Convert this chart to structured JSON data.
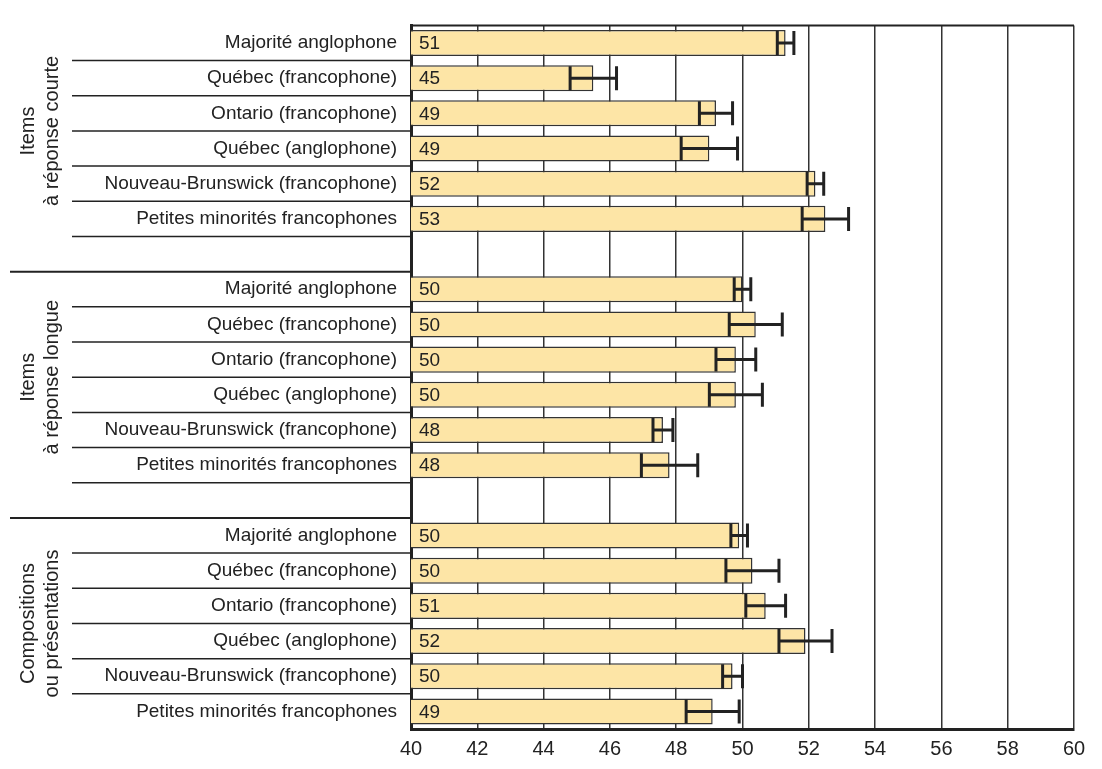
{
  "chart_data": {
    "type": "bar",
    "orientation": "horizontal",
    "categories": [
      "Majorité anglophone",
      "Québec (francophone)",
      "Ontario (francophone)",
      "Québec (anglophone)",
      "Nouveau-Brunswick (francophone)",
      "Petites minorités francophones",
      null,
      "Majorité anglophone",
      "Québec (francophone)",
      "Ontario (francophone)",
      "Québec (anglophone)",
      "Nouveau-Brunswick (francophone)",
      "Petites minorités francophones",
      null,
      "Majorité anglophone",
      "Québec (francophone)",
      "Ontario (francophone)",
      "Québec (anglophone)",
      "Nouveau-Brunswick (francophone)",
      "Petites minorités francophones"
    ],
    "values": [
      51.3,
      45.5,
      49.2,
      49.0,
      52.2,
      52.5,
      null,
      50.0,
      50.4,
      49.8,
      49.8,
      47.6,
      47.8,
      null,
      49.9,
      50.3,
      50.7,
      51.9,
      49.7,
      49.1
    ],
    "errors": [
      0.25,
      0.7,
      0.5,
      0.85,
      0.25,
      0.7,
      null,
      0.25,
      0.8,
      0.6,
      0.8,
      0.3,
      0.85,
      null,
      0.25,
      0.8,
      0.6,
      0.8,
      0.3,
      0.8
    ],
    "value_labels": [
      "51",
      "45",
      "49",
      "49",
      "52",
      "53",
      null,
      "50",
      "50",
      "50",
      "50",
      "48",
      "48",
      null,
      "50",
      "50",
      "51",
      "52",
      "50",
      "49"
    ],
    "color": "#fde5a6",
    "xlim": [
      40,
      60
    ],
    "xticks": [
      40,
      42,
      44,
      46,
      48,
      50,
      52,
      54,
      56,
      58,
      60
    ],
    "grid": "x",
    "legend": false,
    "annotations": [
      "Items\nà réponse courte",
      "Items\nà réponse longue",
      "Compositions\nou présentations"
    ]
  }
}
